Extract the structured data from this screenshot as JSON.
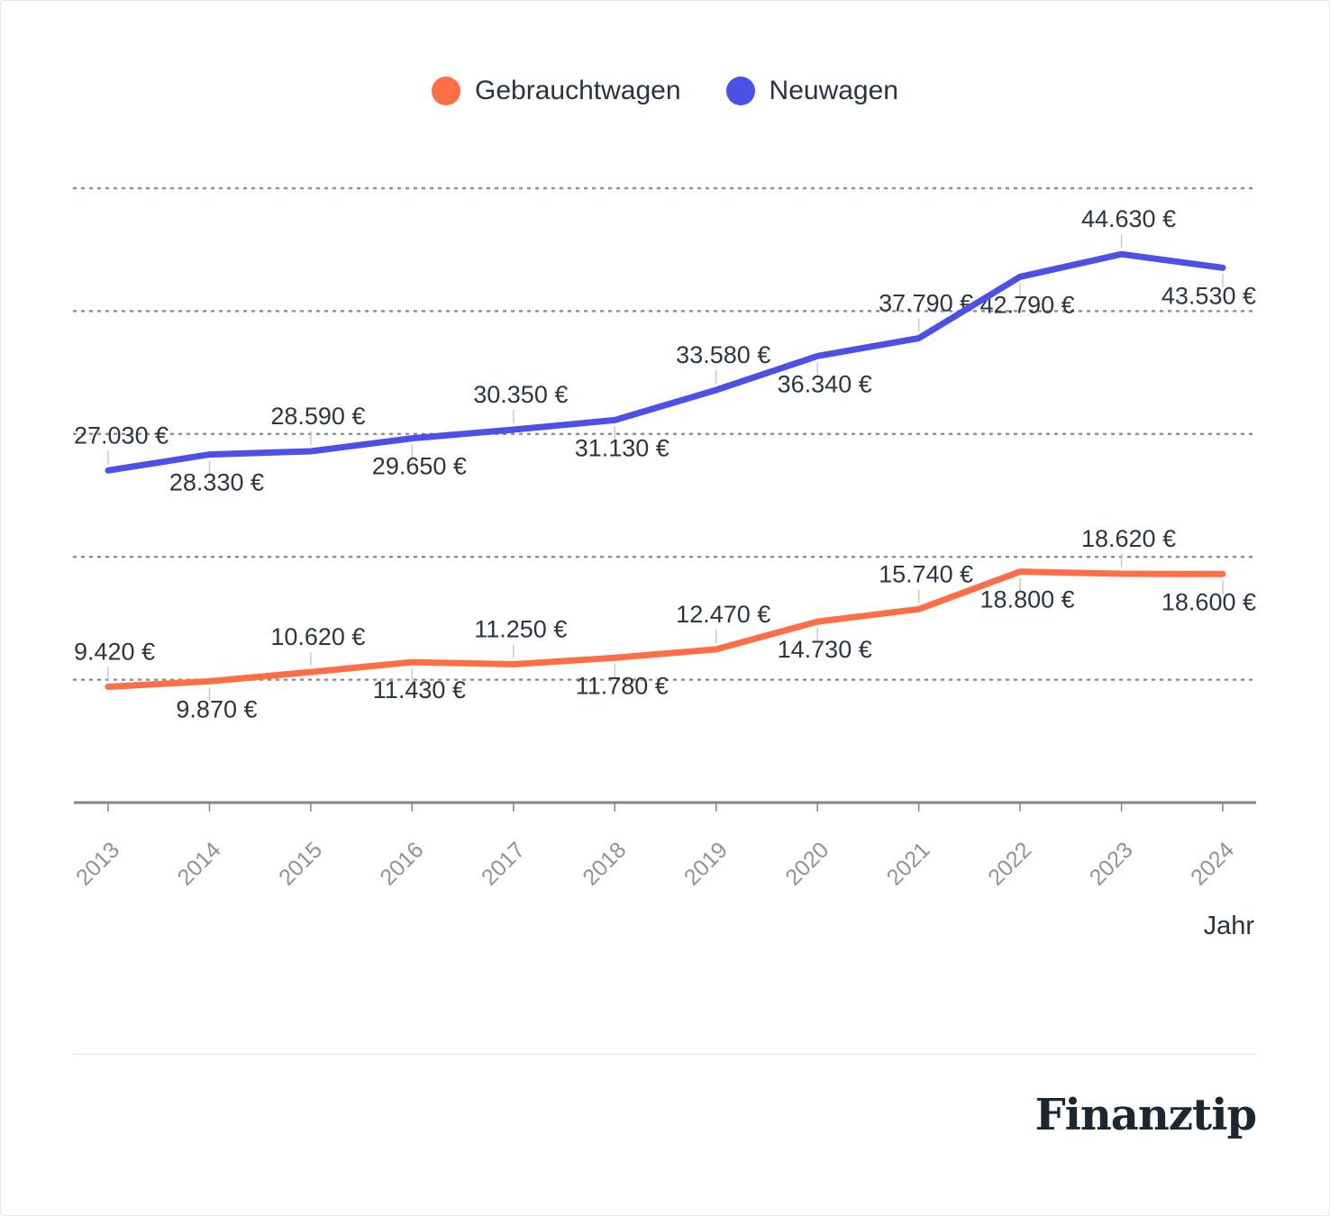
{
  "chart_data": {
    "type": "line",
    "categories": [
      "2013",
      "2014",
      "2015",
      "2016",
      "2017",
      "2018",
      "2019",
      "2020",
      "2021",
      "2022",
      "2023",
      "2024"
    ],
    "series": [
      {
        "name": "Gebrauchtwagen",
        "color": "#ff6e47",
        "values": [
          9420,
          9870,
          10620,
          11430,
          11250,
          11780,
          12470,
          14730,
          15740,
          18800,
          18620,
          18600
        ],
        "labels": [
          "9.420 €",
          "9.870 €",
          "10.620 €",
          "11.430 €",
          "11.250 €",
          "11.780 €",
          "12.470 €",
          "14.730 €",
          "15.740 €",
          "18.800 €",
          "18.620 €",
          "18.600 €"
        ]
      },
      {
        "name": "Neuwagen",
        "color": "#4b50e6",
        "values": [
          27030,
          28330,
          28590,
          29650,
          30350,
          31130,
          33580,
          36340,
          37790,
          42790,
          44630,
          43530
        ],
        "labels": [
          "27.030 €",
          "28.330 €",
          "28.590 €",
          "29.650 €",
          "30.350 €",
          "31.130 €",
          "33.580 €",
          "36.340 €",
          "37.790 €",
          "42.790 €",
          "44.630 €",
          "43.530 €"
        ]
      }
    ],
    "ylim": [
      0,
      50000
    ],
    "gridlines": [
      10000,
      20000,
      30000,
      40000,
      50000
    ],
    "xlabel": "Jahr",
    "ylabel": "",
    "legend": "top-center"
  },
  "brand": {
    "logo_text": "Finanztip"
  }
}
